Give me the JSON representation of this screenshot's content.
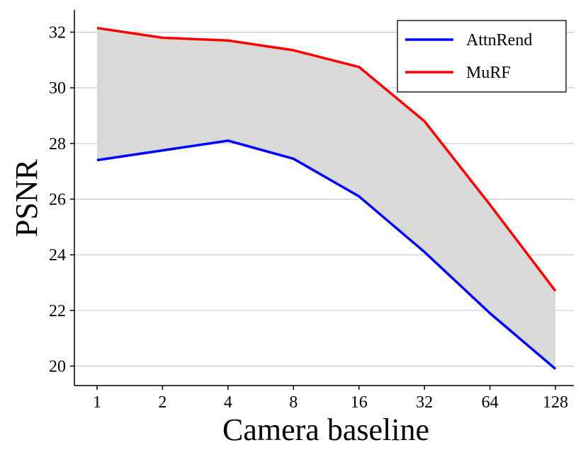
{
  "chart_data": {
    "type": "line",
    "xlabel": "Camera baseline",
    "ylabel": "PSNR",
    "categories": [
      "1",
      "2",
      "4",
      "8",
      "16",
      "32",
      "64",
      "128"
    ],
    "x": [
      1,
      2,
      4,
      8,
      16,
      32,
      64,
      128
    ],
    "x_scale": "log2",
    "ylim": [
      19.3,
      32.8
    ],
    "yticks": [
      20,
      22,
      24,
      26,
      28,
      30,
      32
    ],
    "grid": "horizontal",
    "legend_position": "top-right",
    "fill_between_series": true,
    "fill_color": "#d9d9d9",
    "series": [
      {
        "name": "AttnRend",
        "color": "#0000ff",
        "values": [
          27.4,
          27.75,
          28.1,
          27.45,
          26.1,
          24.1,
          21.9,
          19.9
        ]
      },
      {
        "name": "MuRF",
        "color": "#ff0000",
        "values": [
          32.15,
          31.8,
          31.7,
          31.35,
          30.75,
          28.8,
          25.8,
          22.7
        ]
      }
    ]
  }
}
